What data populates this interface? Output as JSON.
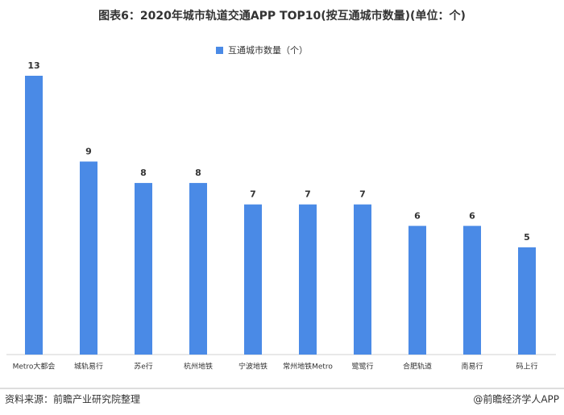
{
  "chart_data": {
    "type": "bar",
    "title": "图表6：2020年城市轨道交通APP TOP10(按互通城市数量)(单位：个)",
    "categories": [
      "Metro大都会",
      "城轨易行",
      "苏e行",
      "杭州地铁",
      "宁波地铁",
      "常州地铁Metro",
      "鹭鹭行",
      "合肥轨道",
      "南易行",
      "码上行"
    ],
    "series": [
      {
        "name": "互通城市数量（个）",
        "color": "#4a8ae6",
        "values": [
          13,
          9,
          8,
          8,
          7,
          7,
          7,
          6,
          6,
          5
        ]
      }
    ],
    "ylim": [
      0,
      13
    ],
    "source": "资料来源：前瞻产业研究院整理",
    "credit": "@前瞻经济学人APP"
  }
}
